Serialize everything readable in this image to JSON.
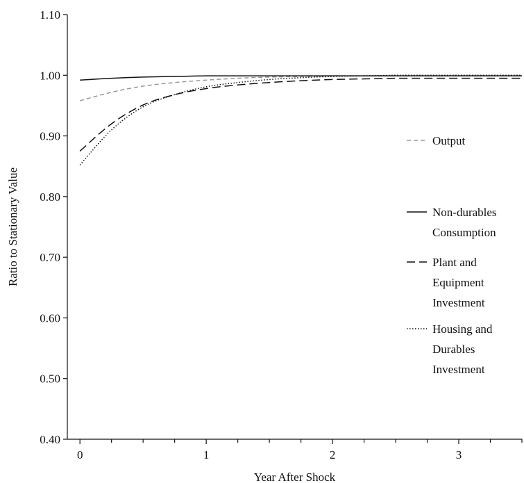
{
  "chart_data": {
    "type": "line",
    "title": "",
    "xlabel": "Year After Shock",
    "ylabel": "Ratio to Stationary Value",
    "xlim": [
      -0.1,
      3.5
    ],
    "ylim": [
      0.4,
      1.1
    ],
    "xticks": [
      0,
      1,
      2,
      3
    ],
    "xtick_labels": [
      "0",
      "1",
      "2",
      "3"
    ],
    "x_minor_step": 0.25,
    "yticks": [
      0.4,
      0.5,
      0.6,
      0.7,
      0.8,
      0.9,
      1.0,
      1.1
    ],
    "ytick_labels": [
      "0.40",
      "0.50",
      "0.60",
      "0.70",
      "0.80",
      "0.90",
      "1.00",
      "1.10"
    ],
    "grid": false,
    "legend_position": "right",
    "series": [
      {
        "name": "Output",
        "legend_lines": [
          "Output"
        ],
        "color": "#999999",
        "dash": "6,4",
        "x": [
          0,
          0.25,
          0.5,
          0.75,
          1.0,
          1.25,
          1.5,
          1.75,
          2.0,
          2.25,
          2.5,
          2.75,
          3.0,
          3.25,
          3.5
        ],
        "y": [
          0.958,
          0.972,
          0.982,
          0.988,
          0.992,
          0.995,
          0.997,
          0.998,
          0.999,
          0.999,
          0.999,
          0.999,
          0.999,
          0.999,
          0.999
        ]
      },
      {
        "name": "Non-durables Consumption",
        "legend_lines": [
          "Non-durables",
          "Consumption"
        ],
        "color": "#111111",
        "dash": "",
        "x": [
          0,
          0.25,
          0.5,
          0.75,
          1.0,
          1.25,
          1.5,
          1.75,
          2.0,
          2.25,
          2.5,
          2.75,
          3.0,
          3.25,
          3.5
        ],
        "y": [
          0.992,
          0.995,
          0.997,
          0.998,
          0.999,
          0.999,
          0.999,
          0.999,
          0.999,
          0.999,
          0.999,
          0.999,
          0.999,
          0.999,
          0.999
        ]
      },
      {
        "name": "Plant and Equipment Investment",
        "legend_lines": [
          "Plant and",
          "Equipment",
          "Investment"
        ],
        "color": "#111111",
        "dash": "12,6",
        "x": [
          0,
          0.25,
          0.5,
          0.75,
          1.0,
          1.25,
          1.5,
          1.75,
          2.0,
          2.25,
          2.5,
          2.75,
          3.0,
          3.25,
          3.5
        ],
        "y": [
          0.875,
          0.92,
          0.951,
          0.968,
          0.978,
          0.984,
          0.988,
          0.991,
          0.993,
          0.994,
          0.995,
          0.995,
          0.995,
          0.995,
          0.995
        ]
      },
      {
        "name": "Housing and Durables Investment",
        "legend_lines": [
          "Housing and",
          "Durables",
          "Investment"
        ],
        "color": "#111111",
        "dash": "1.5,2.5",
        "x": [
          0,
          0.25,
          0.5,
          0.75,
          1.0,
          1.25,
          1.5,
          1.75,
          2.0,
          2.25,
          2.5,
          2.75,
          3.0,
          3.25,
          3.5
        ],
        "y": [
          0.852,
          0.91,
          0.948,
          0.968,
          0.981,
          0.988,
          0.993,
          0.996,
          0.998,
          0.999,
          1.0,
          1.0,
          1.0,
          1.0,
          1.0
        ]
      }
    ]
  }
}
